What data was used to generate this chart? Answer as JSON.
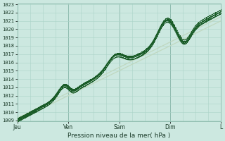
{
  "title": "",
  "xlabel": "Pression niveau de la mer( hPa )",
  "ylabel": "",
  "bg_color": "#cce8e0",
  "plot_bg_color": "#cce8e0",
  "grid_color_major": "#88b8aa",
  "grid_color_minor": "#aad4c8",
  "ylim": [
    1009,
    1023
  ],
  "yticks": [
    1009,
    1010,
    1011,
    1012,
    1013,
    1014,
    1015,
    1016,
    1017,
    1018,
    1019,
    1020,
    1021,
    1022,
    1023
  ],
  "xtick_labels": [
    "Jeu",
    "Ven",
    "Sam",
    "Dim",
    "L"
  ],
  "xtick_positions": [
    0,
    0.25,
    0.5,
    0.75,
    1.0
  ],
  "line_color": "#1a5c28",
  "trend_color": "#c0d8c0",
  "figsize": [
    3.2,
    2.0
  ],
  "dpi": 100
}
